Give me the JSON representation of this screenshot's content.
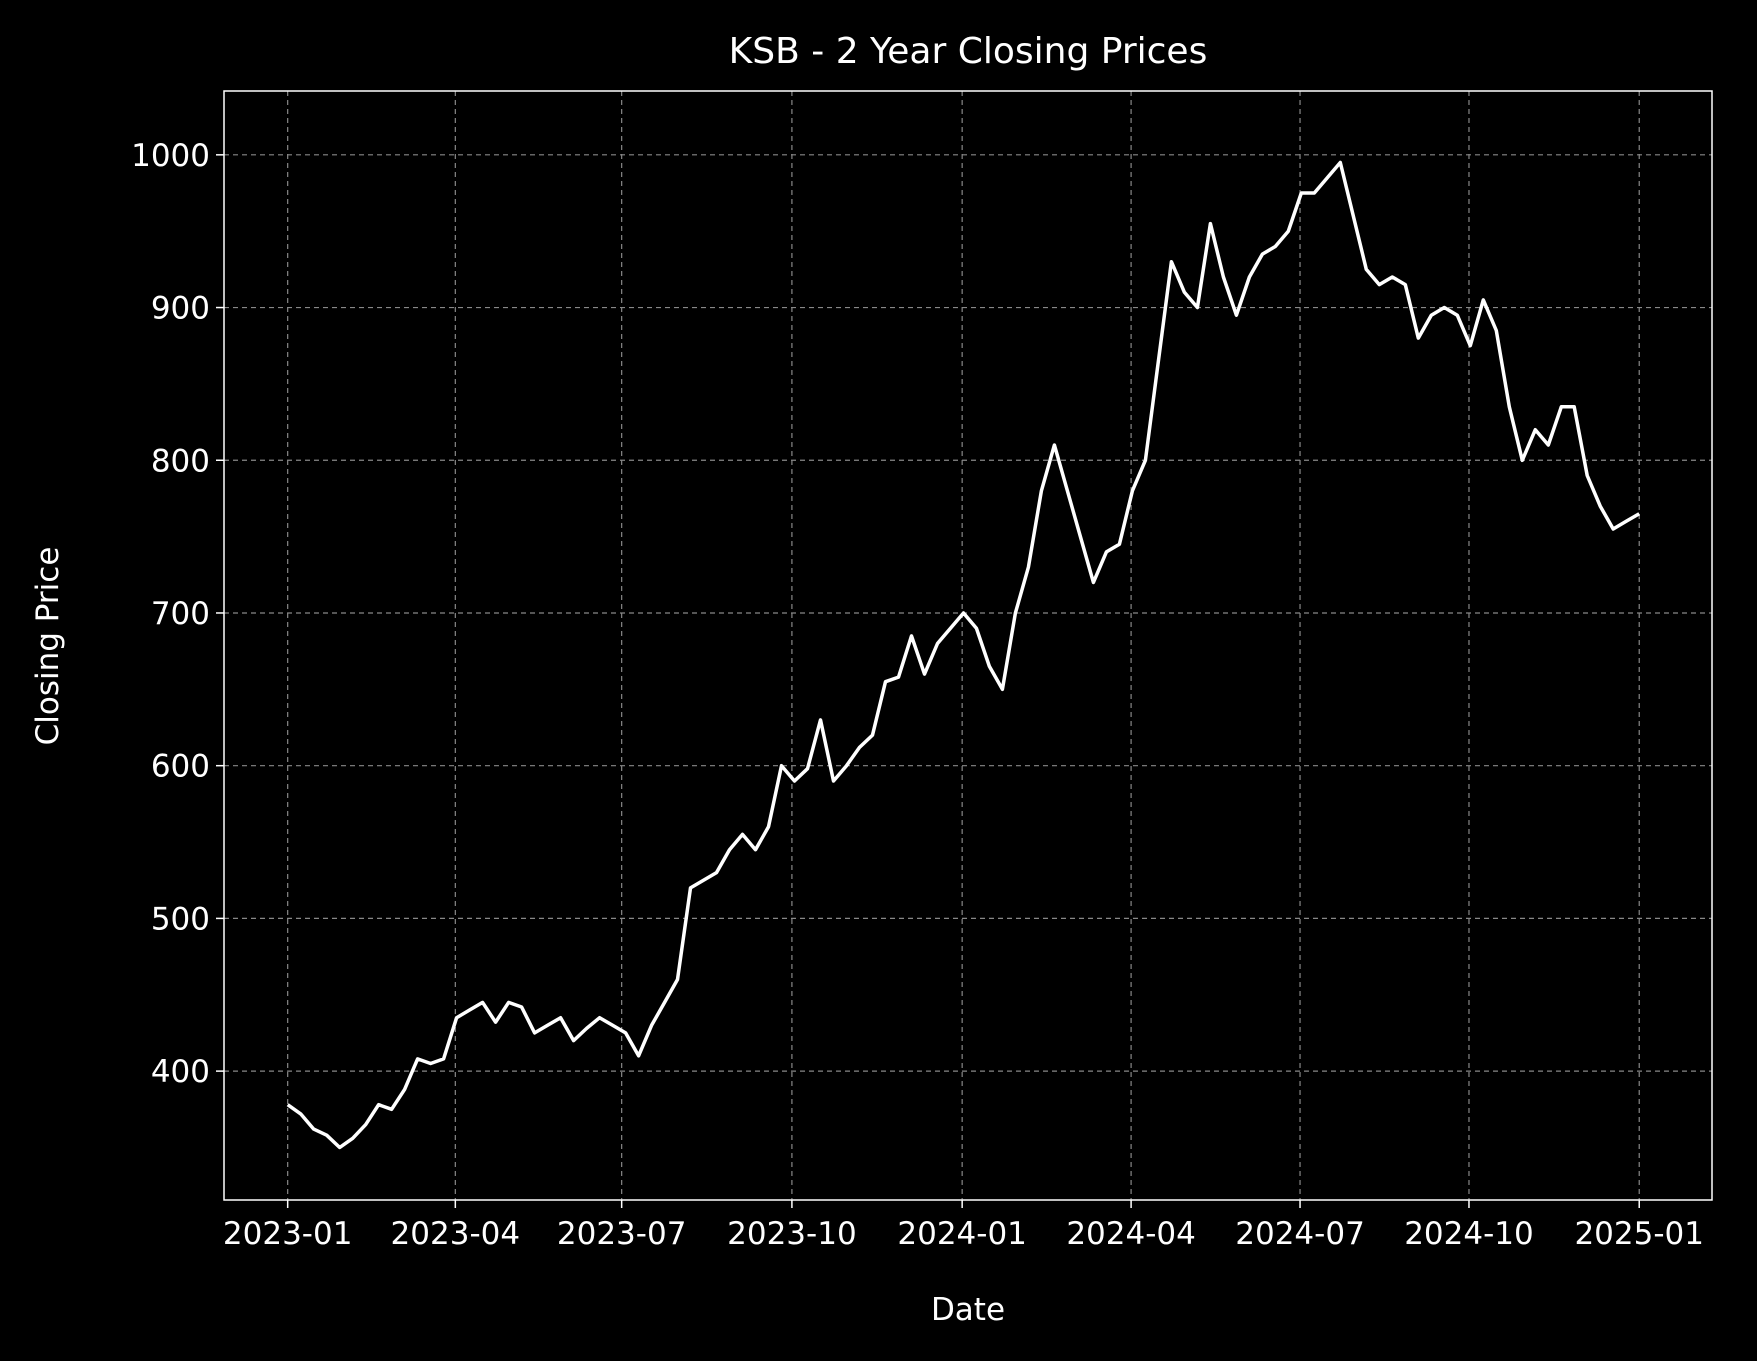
{
  "chart_data": {
    "type": "line",
    "title": "KSB - 2 Year Closing Prices",
    "xlabel": "Date",
    "ylabel": "Closing Price",
    "values": [
      378,
      372,
      362,
      358,
      350,
      356,
      365,
      378,
      375,
      388,
      408,
      405,
      408,
      435,
      440,
      445,
      432,
      445,
      442,
      425,
      430,
      435,
      420,
      428,
      435,
      430,
      425,
      410,
      430,
      445,
      460,
      520,
      525,
      530,
      545,
      555,
      545,
      560,
      600,
      590,
      598,
      630,
      590,
      600,
      612,
      620,
      655,
      658,
      685,
      660,
      680,
      690,
      700,
      690,
      665,
      650,
      700,
      730,
      780,
      810,
      780,
      750,
      720,
      740,
      745,
      780,
      800,
      865,
      930,
      910,
      900,
      955,
      920,
      895,
      920,
      935,
      940,
      950,
      975,
      975,
      985,
      995,
      960,
      925,
      915,
      920,
      915,
      880,
      895,
      900,
      895,
      875,
      905,
      885,
      835,
      800,
      820,
      810,
      835,
      835,
      790,
      770,
      755,
      760,
      765
    ],
    "color": "#ffffff",
    "xlim": [
      -4.9,
      109.6
    ],
    "xticks": [
      {
        "value": 0,
        "label": "2023-01"
      },
      {
        "value": 12.9,
        "label": "2023-04"
      },
      {
        "value": 25.7,
        "label": "2023-07"
      },
      {
        "value": 38.8,
        "label": "2023-10"
      },
      {
        "value": 51.9,
        "label": "2024-01"
      },
      {
        "value": 64.9,
        "label": "2024-04"
      },
      {
        "value": 77.9,
        "label": "2024-07"
      },
      {
        "value": 90.9,
        "label": "2024-10"
      },
      {
        "value": 104,
        "label": "2025-01"
      }
    ],
    "ylim": [
      315.6,
      1041.8
    ],
    "yticks": [
      400,
      500,
      600,
      700,
      800,
      900,
      1000
    ],
    "grid": true
  }
}
